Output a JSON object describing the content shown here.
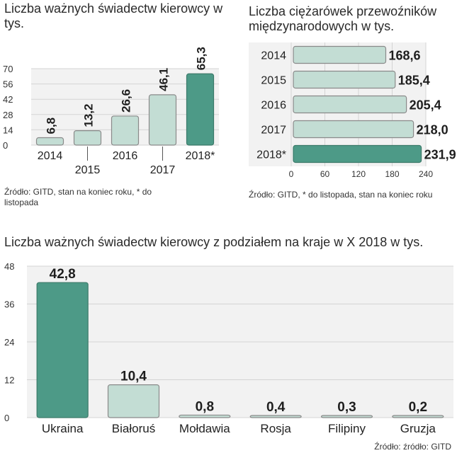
{
  "chart_data": [
    {
      "type": "bar",
      "title": "Liczba ważnych świadectw kierowcy w tys.",
      "categories": [
        "2014",
        "2015",
        "2016",
        "2017",
        "2018*"
      ],
      "values": [
        6.8,
        13.2,
        26.6,
        46.1,
        65.3
      ],
      "value_labels": [
        "6,8",
        "13,2",
        "26,6",
        "46,1",
        "65,3"
      ],
      "yticks": [
        "0",
        "14",
        "28",
        "42",
        "56",
        "70"
      ],
      "ylim": [
        0,
        70
      ],
      "grid": true,
      "highlight_index": 4,
      "source": "Źródło: GITD, stan na koniec roku, * do listopada"
    },
    {
      "type": "bar",
      "orientation": "horizontal",
      "title": "Liczba ciężarówek przewoźników międzynarodowych w tys.",
      "categories": [
        "2014",
        "2015",
        "2016",
        "2017",
        "2018*"
      ],
      "values": [
        168.6,
        185.4,
        205.4,
        218.0,
        231.9
      ],
      "value_labels": [
        "168,6",
        "185,4",
        "205,4",
        "218,0",
        "231,9"
      ],
      "xticks": [
        "0",
        "60",
        "120",
        "180",
        "240"
      ],
      "xlim": [
        0,
        240
      ],
      "grid": true,
      "highlight_index": 4,
      "source": "Źródło: GITD, * do listopada, stan na koniec roku"
    },
    {
      "type": "bar",
      "title": "Liczba ważnych świadectw kierowcy z podziałem na kraje w X 2018 w tys.",
      "categories": [
        "Ukraina",
        "Białoruś",
        "Mołdawia",
        "Rosja",
        "Filipiny",
        "Gruzja"
      ],
      "values": [
        42.8,
        10.4,
        0.8,
        0.4,
        0.3,
        0.2
      ],
      "value_labels": [
        "42,8",
        "10,4",
        "0,8",
        "0,4",
        "0,3",
        "0,2"
      ],
      "yticks": [
        "0",
        "12",
        "24",
        "36",
        "48"
      ],
      "ylim": [
        0,
        48
      ],
      "grid": true,
      "highlight_index": 0,
      "source": "Źródło: źródło: GITD"
    }
  ],
  "colors": {
    "highlight": "#4d9a87",
    "normal": "#c3ddd4",
    "border": "#8a8a8a",
    "grid": "#d4d4d4",
    "background": "#f2f2f2"
  }
}
